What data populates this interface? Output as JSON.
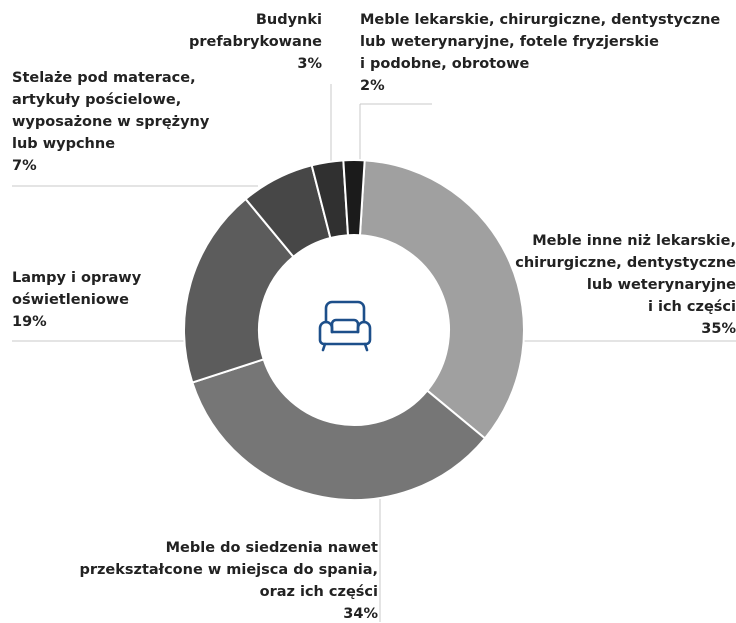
{
  "chart_data": {
    "type": "donut",
    "categories": [
      "Meble inne niż lekarskie,\nchirurgiczne, dentystyczne\nlub weterynaryjne\ni ich części",
      "Meble do siedzenia nawet\nprzekształcone w miejsca do spania,\noraz ich części",
      "Lampy i oprawy\noświetleniowe",
      "Stelaże pod materace,\nartykuły pościelowe,\nwyposażone w sprężyny\nlub wypchne",
      "Budynki\nprefabrykowane",
      "Meble lekarskie, chirurgiczne, dentystyczne\nlub weterynaryjne, fotele fryzjerskie\ni podobne, obrotowe"
    ],
    "values": [
      35,
      34,
      19,
      7,
      3,
      2
    ],
    "value_labels": [
      "35%",
      "34%",
      "19%",
      "7%",
      "3%",
      "2%"
    ],
    "colors": [
      "#a0a0a0",
      "#767676",
      "#5c5c5c",
      "#474747",
      "#303030",
      "#1b1b1b"
    ]
  }
}
